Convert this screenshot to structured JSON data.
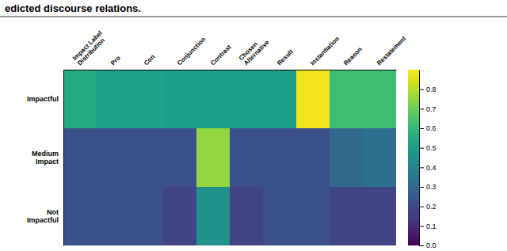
{
  "chart_data": {
    "type": "heatmap",
    "title": "edicted discourse relations.",
    "categories": [
      "Impact Label\nDistribution",
      "Pro",
      "Con",
      "Conjunction",
      "Contrast",
      "Chosen\nAlternative",
      "Result",
      "Instantiation",
      "Reason",
      "Restatement"
    ],
    "series": [
      {
        "name": "Impactful",
        "values": [
          0.55,
          0.52,
          0.52,
          0.5,
          0.5,
          0.5,
          0.5,
          0.88,
          0.62,
          0.62
        ]
      },
      {
        "name": "Medium\nImpact",
        "values": [
          0.22,
          0.22,
          0.22,
          0.22,
          0.75,
          0.22,
          0.22,
          0.22,
          0.3,
          0.32
        ]
      },
      {
        "name": "Not\nImpactful",
        "values": [
          0.22,
          0.22,
          0.22,
          0.18,
          0.45,
          0.18,
          0.22,
          0.22,
          0.18,
          0.18
        ]
      }
    ],
    "color": "viridis",
    "colorbar_range": [
      0.0,
      0.9
    ],
    "colorbar_ticks": [
      {
        "value": 0.0,
        "label": "0.0"
      },
      0.1,
      0.2,
      0.3,
      0.4,
      0.5,
      0.6,
      0.7,
      0.8
    ]
  }
}
